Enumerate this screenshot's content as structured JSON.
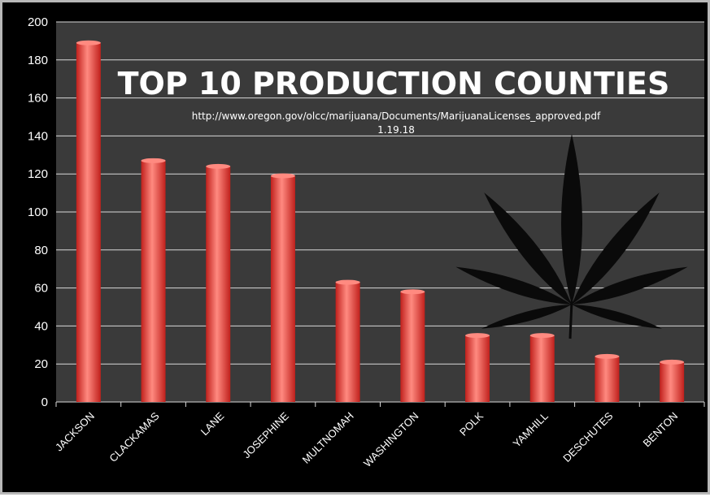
{
  "chart_data": {
    "type": "bar",
    "title": "TOP 10 PRODUCTION COUNTIES",
    "subtitle": "http://www.oregon.gov/olcc/marijuana/Documents/MarijuanaLicenses_approved.pdf",
    "date": "1.19.18",
    "categories": [
      "JACKSON",
      "CLACKAMAS",
      "LANE",
      "JOSEPHINE",
      "MULTNOMAH",
      "WASHINGTON",
      "POLK",
      "YAMHILL",
      "DESCHUTES",
      "BENTON"
    ],
    "values": [
      189,
      127,
      124,
      119,
      63,
      58,
      35,
      35,
      24,
      21
    ],
    "ylim": [
      0,
      200
    ],
    "yticks": [
      0,
      20,
      40,
      60,
      80,
      100,
      120,
      140,
      160,
      180,
      200
    ],
    "grid": true,
    "xlabel": "",
    "ylabel": ""
  },
  "colors": {
    "plot_background": "#3a3a3a",
    "bar": "#c0201c",
    "bar_highlight": "#ff8a80",
    "gridline": "#d8d8d8",
    "leaf": "#0a0a0a"
  },
  "decor": {
    "leaf_icon": "cannabis-leaf-icon"
  }
}
